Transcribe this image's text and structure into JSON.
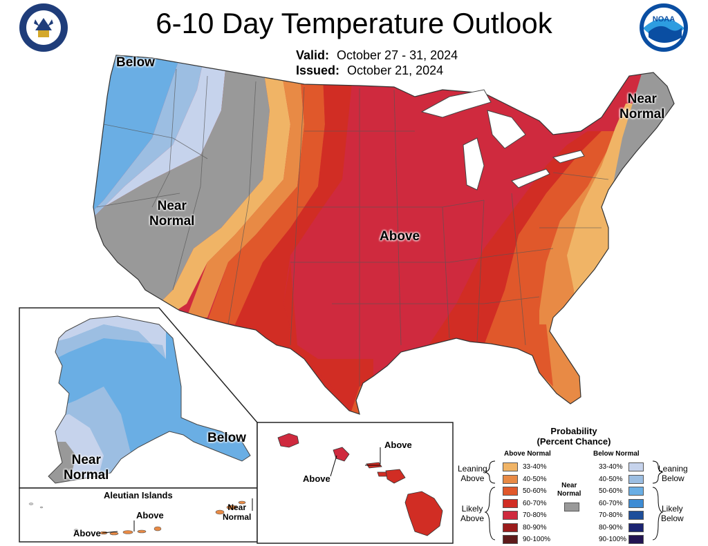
{
  "title": "6-10 Day Temperature Outlook",
  "valid": {
    "label": "Valid:",
    "value": "October 27 - 31, 2024"
  },
  "issued": {
    "label": "Issued:",
    "value": "October 21, 2024"
  },
  "logos": {
    "left": "department-of-commerce-seal",
    "right": "noaa-logo",
    "noaa_text": "NOAA"
  },
  "conus_labels": {
    "below": "Below",
    "near_normal_west": [
      "Near",
      "Normal"
    ],
    "above": "Above",
    "near_normal_ne": [
      "Near",
      "Normal"
    ]
  },
  "alaska_labels": {
    "below": "Below",
    "near_normal": [
      "Near",
      "Normal"
    ]
  },
  "aleutian": {
    "title": "Aleutian Islands",
    "above_1": "Above",
    "above_2": "Above",
    "near_normal": [
      "Near",
      "Normal"
    ]
  },
  "hawaii_labels": {
    "above_1": "Above",
    "above_2": "Above"
  },
  "legend": {
    "title": [
      "Probability",
      "(Percent Chance)"
    ],
    "above_header": "Above Normal",
    "below_header": "Below Normal",
    "near_label": [
      "Near",
      "Normal"
    ],
    "leaning_above": [
      "Leaning",
      "Above"
    ],
    "likely_above": [
      "Likely",
      "Above"
    ],
    "leaning_below": [
      "Leaning",
      "Below"
    ],
    "likely_below": [
      "Likely",
      "Below"
    ],
    "above_bins": [
      {
        "range": "33-40%",
        "color": "#F0B466"
      },
      {
        "range": "40-50%",
        "color": "#E88A45"
      },
      {
        "range": "50-60%",
        "color": "#E0582B"
      },
      {
        "range": "60-70%",
        "color": "#D12D24"
      },
      {
        "range": "70-80%",
        "color": "#CF2A3E"
      },
      {
        "range": "80-90%",
        "color": "#9C1C1C"
      },
      {
        "range": "90-100%",
        "color": "#5E1A1A"
      }
    ],
    "below_bins": [
      {
        "range": "33-40%",
        "color": "#C6D3EC"
      },
      {
        "range": "40-50%",
        "color": "#9CBEE2"
      },
      {
        "range": "50-60%",
        "color": "#6AAEE4"
      },
      {
        "range": "60-70%",
        "color": "#3D8CD4"
      },
      {
        "range": "70-80%",
        "color": "#1E4E9A"
      },
      {
        "range": "80-90%",
        "color": "#1B2472"
      },
      {
        "range": "90-100%",
        "color": "#221452"
      }
    ],
    "near_color": "#999999"
  }
}
